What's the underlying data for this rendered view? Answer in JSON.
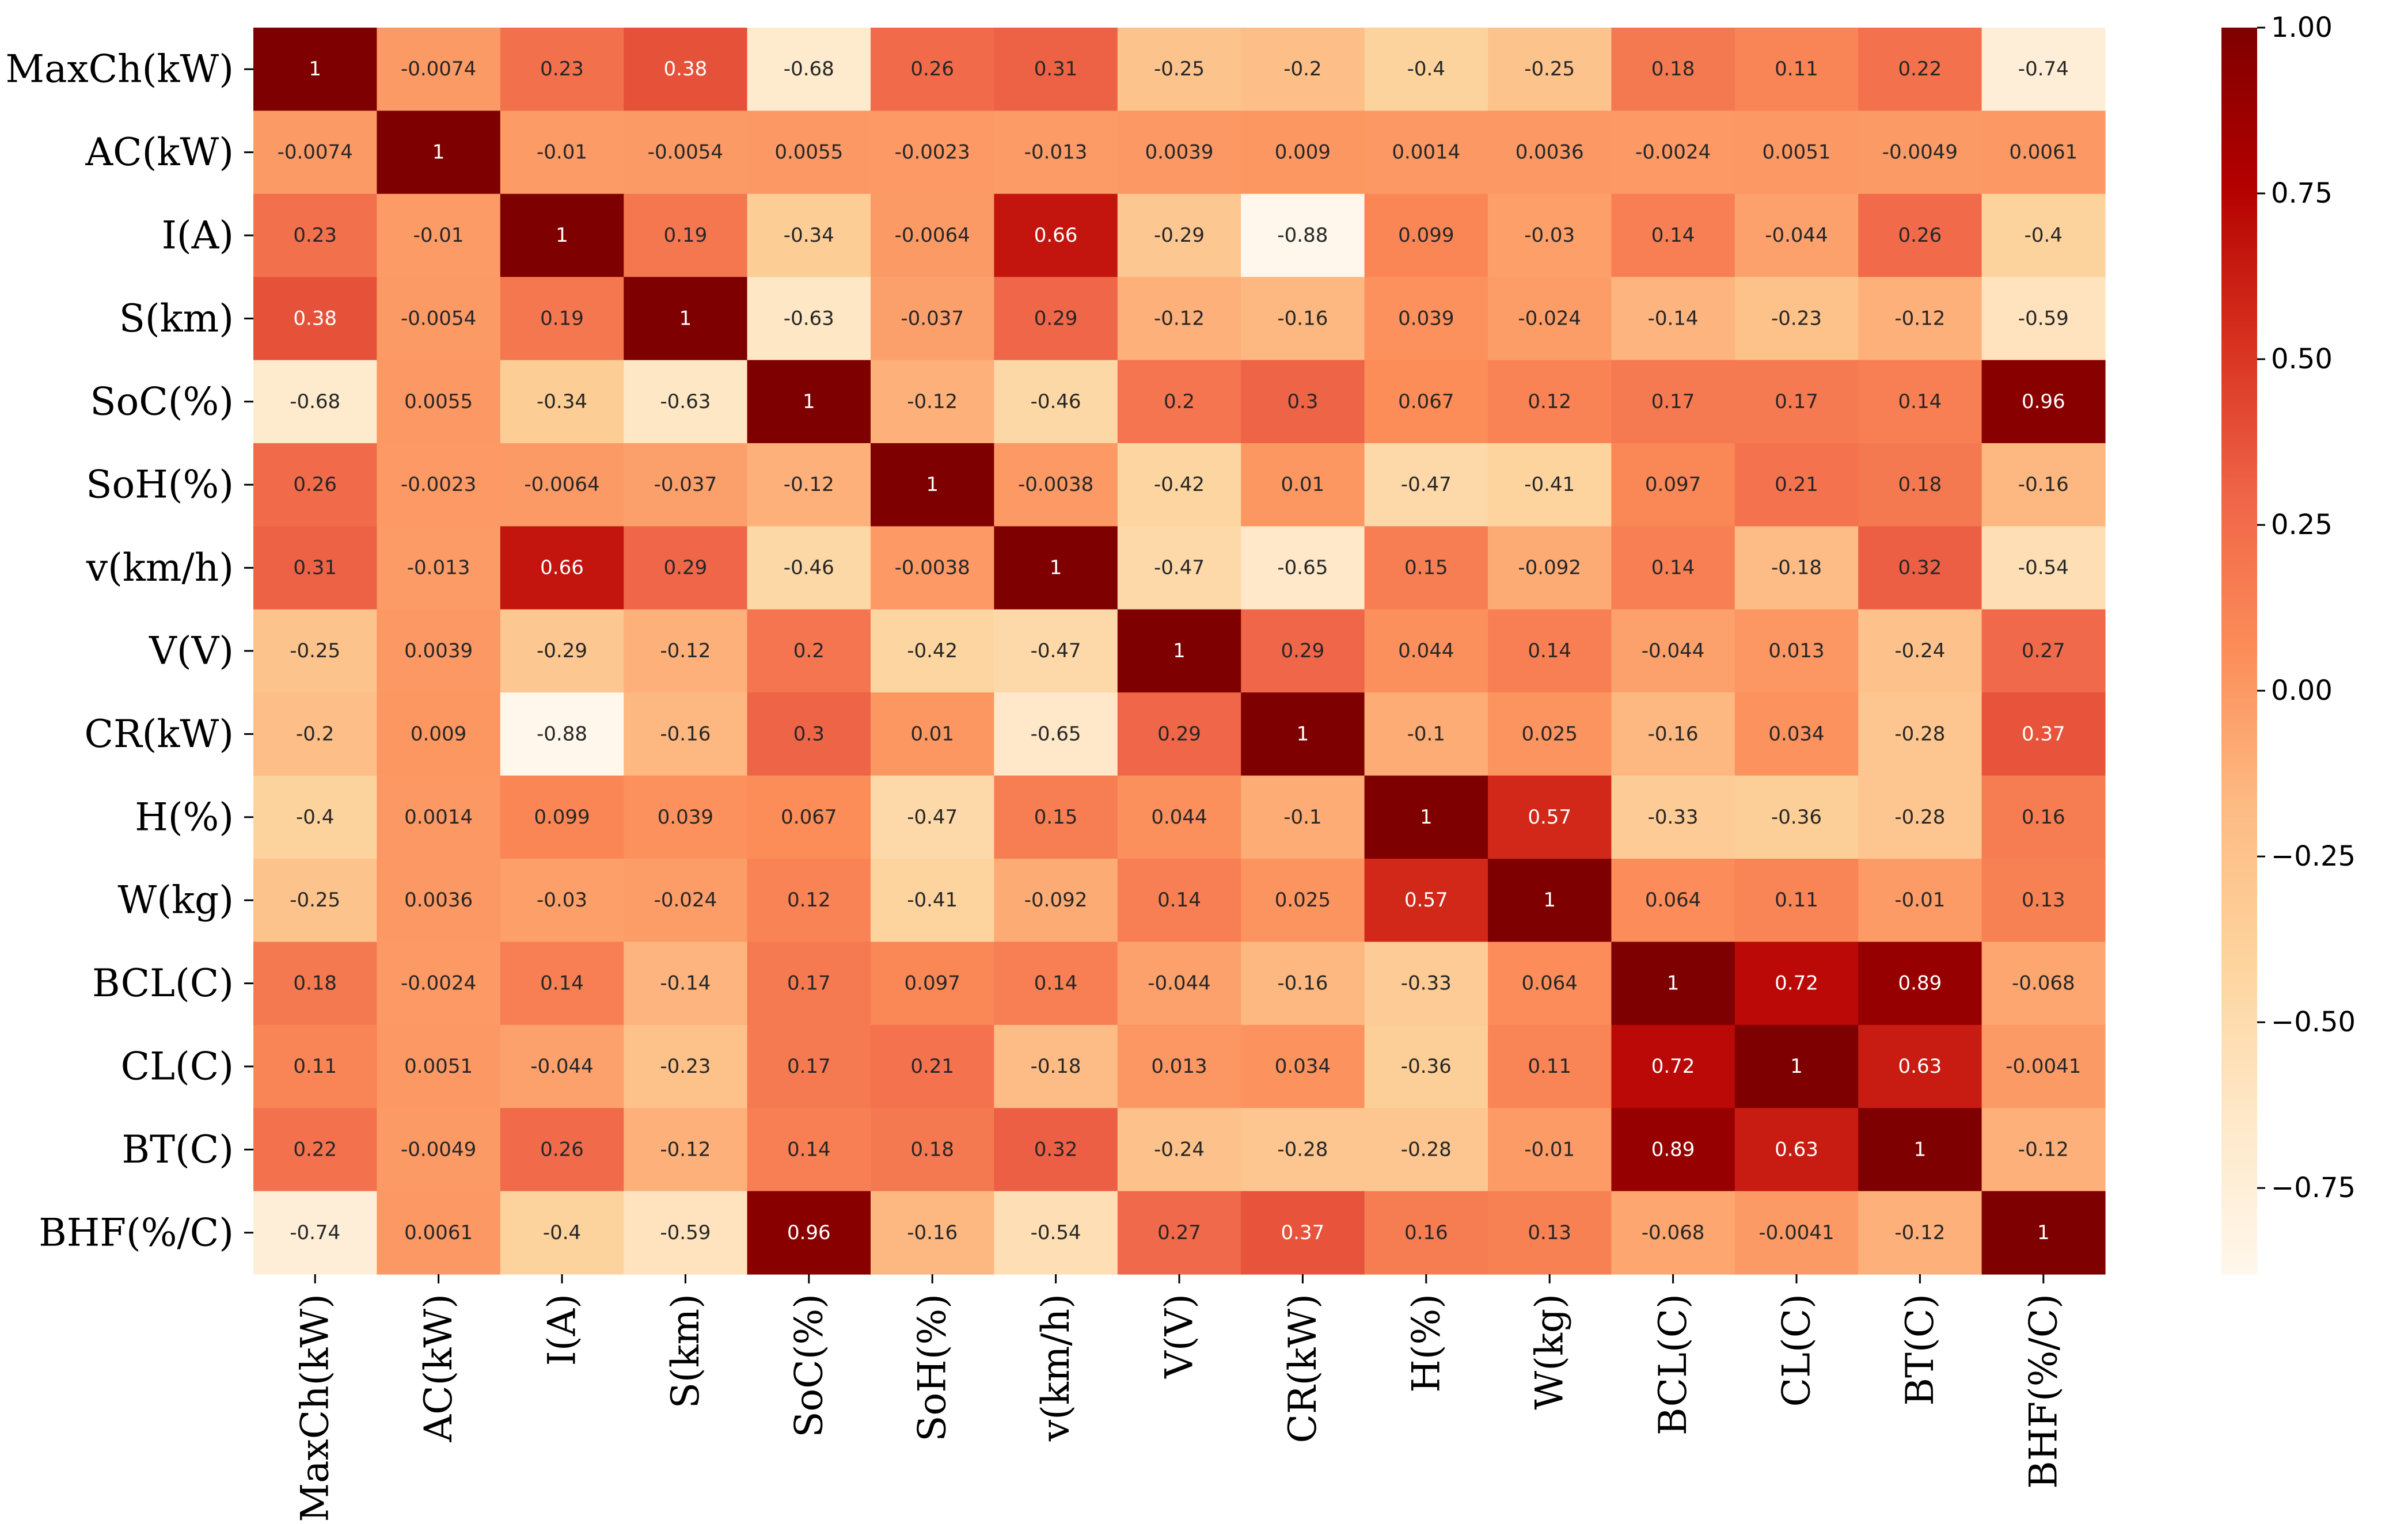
{
  "chart_data": {
    "type": "heatmap",
    "title": "",
    "colormap": "OrRd",
    "colormap_stops": [
      "#fff7ec",
      "#fee8c8",
      "#fdd49e",
      "#fdbb84",
      "#fc8d59",
      "#ef6548",
      "#d7301f",
      "#b30000",
      "#7f0000"
    ],
    "vmin": -0.88,
    "vmax": 1.0,
    "row_labels": [
      "MaxCh(kW)",
      "AC(kW)",
      "I(A)",
      "S(km)",
      "SoC(%)",
      "SoH(%)",
      "v(km/h)",
      "V(V)",
      "CR(kW)",
      "H(%)",
      "W(kg)",
      "BCL(C)",
      "CL(C)",
      "BT(C)",
      "BHF(%/C)"
    ],
    "col_labels": [
      "MaxCh(kW)",
      "AC(kW)",
      "I(A)",
      "S(km)",
      "SoC(%)",
      "SoH(%)",
      "v(km/h)",
      "V(V)",
      "CR(kW)",
      "H(%)",
      "W(kg)",
      "BCL(C)",
      "CL(C)",
      "BT(C)",
      "BHF(%/C)"
    ],
    "cell_labels": [
      [
        "1",
        "-0.0074",
        "0.23",
        "0.38",
        "-0.68",
        "0.26",
        "0.31",
        "-0.25",
        "-0.2",
        "-0.4",
        "-0.25",
        "0.18",
        "0.11",
        "0.22",
        "-0.74"
      ],
      [
        "-0.0074",
        "1",
        "-0.01",
        "-0.0054",
        "0.0055",
        "-0.0023",
        "-0.013",
        "0.0039",
        "0.009",
        "0.0014",
        "0.0036",
        "-0.0024",
        "0.0051",
        "-0.0049",
        "0.0061"
      ],
      [
        "0.23",
        "-0.01",
        "1",
        "0.19",
        "-0.34",
        "-0.0064",
        "0.66",
        "-0.29",
        "-0.88",
        "0.099",
        "-0.03",
        "0.14",
        "-0.044",
        "0.26",
        "-0.4"
      ],
      [
        "0.38",
        "-0.0054",
        "0.19",
        "1",
        "-0.63",
        "-0.037",
        "0.29",
        "-0.12",
        "-0.16",
        "0.039",
        "-0.024",
        "-0.14",
        "-0.23",
        "-0.12",
        "-0.59"
      ],
      [
        "-0.68",
        "0.0055",
        "-0.34",
        "-0.63",
        "1",
        "-0.12",
        "-0.46",
        "0.2",
        "0.3",
        "0.067",
        "0.12",
        "0.17",
        "0.17",
        "0.14",
        "0.96"
      ],
      [
        "0.26",
        "-0.0023",
        "-0.0064",
        "-0.037",
        "-0.12",
        "1",
        "-0.0038",
        "-0.42",
        "0.01",
        "-0.47",
        "-0.41",
        "0.097",
        "0.21",
        "0.18",
        "-0.16"
      ],
      [
        "0.31",
        "-0.013",
        "0.66",
        "0.29",
        "-0.46",
        "-0.0038",
        "1",
        "-0.47",
        "-0.65",
        "0.15",
        "-0.092",
        "0.14",
        "-0.18",
        "0.32",
        "-0.54"
      ],
      [
        "-0.25",
        "0.0039",
        "-0.29",
        "-0.12",
        "0.2",
        "-0.42",
        "-0.47",
        "1",
        "0.29",
        "0.044",
        "0.14",
        "-0.044",
        "0.013",
        "-0.24",
        "0.27"
      ],
      [
        "-0.2",
        "0.009",
        "-0.88",
        "-0.16",
        "0.3",
        "0.01",
        "-0.65",
        "0.29",
        "1",
        "-0.1",
        "0.025",
        "-0.16",
        "0.034",
        "-0.28",
        "0.37"
      ],
      [
        "-0.4",
        "0.0014",
        "0.099",
        "0.039",
        "0.067",
        "-0.47",
        "0.15",
        "0.044",
        "-0.1",
        "1",
        "0.57",
        "-0.33",
        "-0.36",
        "-0.28",
        "0.16"
      ],
      [
        "-0.25",
        "0.0036",
        "-0.03",
        "-0.024",
        "0.12",
        "-0.41",
        "-0.092",
        "0.14",
        "0.025",
        "0.57",
        "1",
        "0.064",
        "0.11",
        "-0.01",
        "0.13"
      ],
      [
        "0.18",
        "-0.0024",
        "0.14",
        "-0.14",
        "0.17",
        "0.097",
        "0.14",
        "-0.044",
        "-0.16",
        "-0.33",
        "0.064",
        "1",
        "0.72",
        "0.89",
        "-0.068"
      ],
      [
        "0.11",
        "0.0051",
        "-0.044",
        "-0.23",
        "0.17",
        "0.21",
        "-0.18",
        "0.013",
        "0.034",
        "-0.36",
        "0.11",
        "0.72",
        "1",
        "0.63",
        "-0.0041"
      ],
      [
        "0.22",
        "-0.0049",
        "0.26",
        "-0.12",
        "0.14",
        "0.18",
        "0.32",
        "-0.24",
        "-0.28",
        "-0.28",
        "-0.01",
        "0.89",
        "0.63",
        "1",
        "-0.12"
      ],
      [
        "-0.74",
        "0.0061",
        "-0.4",
        "-0.59",
        "0.96",
        "-0.16",
        "-0.54",
        "0.27",
        "0.37",
        "0.16",
        "0.13",
        "-0.068",
        "-0.0041",
        "-0.12",
        "1"
      ]
    ],
    "colorbar": {
      "ticks": [
        1.0,
        0.75,
        0.5,
        0.25,
        0.0,
        -0.25,
        -0.5,
        -0.75
      ],
      "tick_labels": [
        "1.00",
        "0.75",
        "0.50",
        "0.25",
        "0.00",
        "−0.25",
        "−0.50",
        "−0.75"
      ]
    },
    "legend_position": "right",
    "grid": false
  }
}
